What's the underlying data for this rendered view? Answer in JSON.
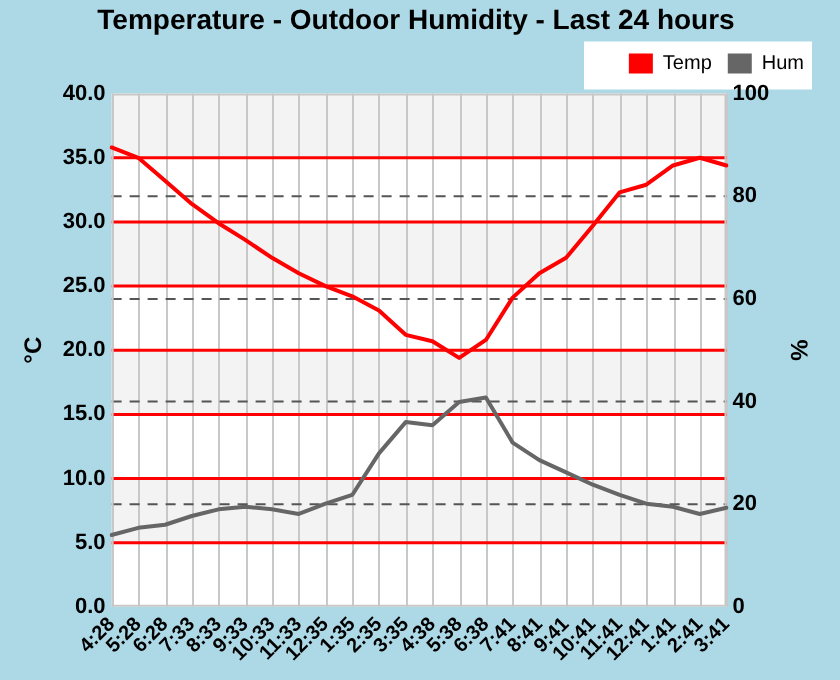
{
  "chart_data": {
    "type": "line",
    "title": "Temperature - Outdoor Humidity - Last 24 hours",
    "ylabel": "°C",
    "y2label": "%",
    "categories": [
      "4:28",
      "5:28",
      "6:28",
      "7:33",
      "8:33",
      "9:33",
      "10:33",
      "11:33",
      "12:35",
      "1:35",
      "2:35",
      "3:35",
      "4:38",
      "5:38",
      "6:38",
      "7:41",
      "8:41",
      "9:41",
      "10:41",
      "11:41",
      "12:41",
      "1:41",
      "2:41",
      "3:41"
    ],
    "series": [
      {
        "name": "Temp",
        "color": "#ff0000",
        "values": [
          35.8,
          35.0,
          33.2,
          31.4,
          29.9,
          28.6,
          27.2,
          26.0,
          25.0,
          24.2,
          23.1,
          21.2,
          20.7,
          19.4,
          20.8,
          24.1,
          26.0,
          27.2,
          29.7,
          32.3,
          32.9,
          34.4,
          35.0,
          34.4
        ]
      },
      {
        "name": "Hum",
        "color": "#666666",
        "axis": "y2",
        "values": [
          14.0,
          15.4,
          16.0,
          17.7,
          19.0,
          19.5,
          19.0,
          18.1,
          20.1,
          21.8,
          29.9,
          36.0,
          35.4,
          39.9,
          40.8,
          32.0,
          28.6,
          26.2,
          23.8,
          21.8,
          20.1,
          19.5,
          18.1,
          19.3
        ]
      }
    ],
    "ylim": [
      0,
      40
    ],
    "yticks": [
      {
        "value": 0,
        "label": "0.0"
      },
      {
        "value": 5,
        "label": "5.0"
      },
      {
        "value": 10,
        "label": "10.0"
      },
      {
        "value": 15,
        "label": "15.0"
      },
      {
        "value": 20,
        "label": "20.0"
      },
      {
        "value": 25,
        "label": "25.0"
      },
      {
        "value": 30,
        "label": "30.0"
      },
      {
        "value": 35,
        "label": "35.0"
      },
      {
        "value": 40,
        "label": "40.0"
      }
    ],
    "y2lim": [
      0,
      100
    ],
    "y2ticks": [
      0,
      20,
      40,
      60,
      80,
      100
    ],
    "grid": true,
    "legend": "top right",
    "marker": "none",
    "line_style": "solid"
  }
}
